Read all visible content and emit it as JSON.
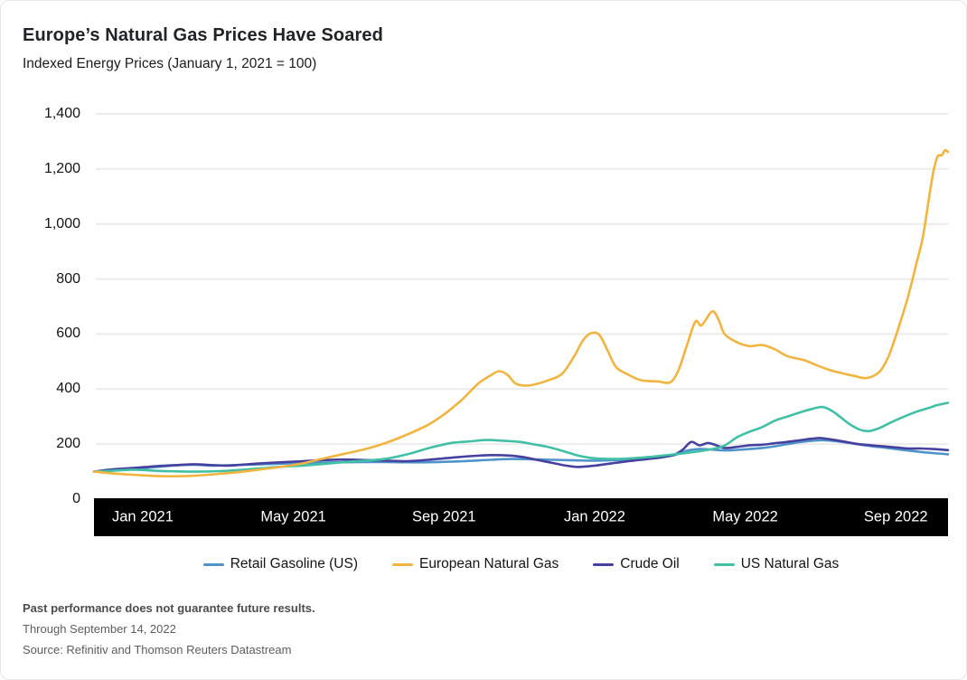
{
  "header": {
    "title": "Europe’s Natural Gas Prices Have Soared",
    "subtitle": "Indexed Energy Prices (January 1, 2021 = 100)"
  },
  "chart_data": {
    "type": "line",
    "title": "Europe’s Natural Gas Prices Have Soared",
    "subtitle": "Indexed Energy Prices (January 1, 2021 = 100)",
    "xlabel": "",
    "ylabel": "",
    "ylim": [
      0,
      1400
    ],
    "y_ticks": [
      "0",
      "200",
      "400",
      "600",
      "800",
      "1,000",
      "1,200",
      "1,400"
    ],
    "y_tick_values": [
      0,
      200,
      400,
      600,
      800,
      1000,
      1200,
      1400
    ],
    "x_tick_labels": [
      "Jan 2021",
      "May 2021",
      "Sep 2021",
      "Jan 2022",
      "May 2022",
      "Sep 2022"
    ],
    "x_range_months": 20.45,
    "grid": true,
    "legend_position": "bottom",
    "axis_band_color": "#000000",
    "grid_color": "#ececec",
    "series": [
      {
        "name": "Retail Gasoline (US)",
        "color": "#4E93CB",
        "points": [
          [
            0,
            100
          ],
          [
            0.3,
            103
          ],
          [
            0.6,
            106
          ],
          [
            1,
            110
          ],
          [
            1.5,
            117
          ],
          [
            2,
            123
          ],
          [
            2.4,
            125
          ],
          [
            2.8,
            122
          ],
          [
            3.2,
            123
          ],
          [
            3.6,
            125
          ],
          [
            4,
            127
          ],
          [
            4.5,
            129
          ],
          [
            5,
            131
          ],
          [
            5.5,
            133
          ],
          [
            6,
            134
          ],
          [
            6.5,
            135
          ],
          [
            7,
            135
          ],
          [
            7.5,
            134
          ],
          [
            8,
            134
          ],
          [
            8.5,
            136
          ],
          [
            9,
            139
          ],
          [
            9.5,
            143
          ],
          [
            10,
            146
          ],
          [
            10.5,
            145
          ],
          [
            11,
            143
          ],
          [
            11.5,
            141
          ],
          [
            12,
            140
          ],
          [
            12.5,
            142
          ],
          [
            13,
            146
          ],
          [
            13.5,
            152
          ],
          [
            13.9,
            160
          ],
          [
            14.2,
            176
          ],
          [
            14.5,
            182
          ],
          [
            14.8,
            180
          ],
          [
            15.1,
            177
          ],
          [
            15.4,
            179
          ],
          [
            15.7,
            182
          ],
          [
            16,
            186
          ],
          [
            16.3,
            192
          ],
          [
            16.6,
            200
          ],
          [
            16.9,
            207
          ],
          [
            17.2,
            212
          ],
          [
            17.5,
            214
          ],
          [
            17.8,
            210
          ],
          [
            18.1,
            204
          ],
          [
            18.4,
            197
          ],
          [
            18.7,
            191
          ],
          [
            19,
            186
          ],
          [
            19.3,
            180
          ],
          [
            19.6,
            175
          ],
          [
            19.9,
            170
          ],
          [
            20.2,
            166
          ],
          [
            20.45,
            163
          ]
        ]
      },
      {
        "name": "Crude Oil",
        "color": "#46419E",
        "points": [
          [
            0,
            100
          ],
          [
            0.3,
            106
          ],
          [
            0.6,
            110
          ],
          [
            1,
            114
          ],
          [
            1.5,
            120
          ],
          [
            2,
            124
          ],
          [
            2.4,
            127
          ],
          [
            2.8,
            124
          ],
          [
            3.2,
            122
          ],
          [
            3.6,
            126
          ],
          [
            4,
            130
          ],
          [
            4.5,
            134
          ],
          [
            5,
            138
          ],
          [
            5.5,
            142
          ],
          [
            6,
            144
          ],
          [
            6.5,
            142
          ],
          [
            7,
            140
          ],
          [
            7.5,
            138
          ],
          [
            8,
            143
          ],
          [
            8.5,
            150
          ],
          [
            9,
            156
          ],
          [
            9.5,
            160
          ],
          [
            10,
            158
          ],
          [
            10.3,
            152
          ],
          [
            10.6,
            143
          ],
          [
            11,
            131
          ],
          [
            11.3,
            122
          ],
          [
            11.6,
            117
          ],
          [
            12,
            122
          ],
          [
            12.4,
            130
          ],
          [
            12.8,
            138
          ],
          [
            13.2,
            145
          ],
          [
            13.6,
            152
          ],
          [
            13.9,
            162
          ],
          [
            14.1,
            180
          ],
          [
            14.3,
            208
          ],
          [
            14.5,
            196
          ],
          [
            14.7,
            204
          ],
          [
            14.9,
            196
          ],
          [
            15.1,
            186
          ],
          [
            15.4,
            190
          ],
          [
            15.7,
            196
          ],
          [
            16,
            198
          ],
          [
            16.3,
            203
          ],
          [
            16.6,
            208
          ],
          [
            16.9,
            214
          ],
          [
            17.2,
            220
          ],
          [
            17.4,
            222
          ],
          [
            17.7,
            216
          ],
          [
            18,
            208
          ],
          [
            18.3,
            200
          ],
          [
            18.6,
            196
          ],
          [
            18.9,
            192
          ],
          [
            19.2,
            188
          ],
          [
            19.5,
            184
          ],
          [
            19.8,
            184
          ],
          [
            20.1,
            182
          ],
          [
            20.45,
            178
          ]
        ]
      },
      {
        "name": "US Natural Gas",
        "color": "#41C0A5",
        "points": [
          [
            0,
            100
          ],
          [
            0.5,
            104
          ],
          [
            1,
            107
          ],
          [
            1.5,
            103
          ],
          [
            2,
            101
          ],
          [
            2.5,
            100
          ],
          [
            3,
            102
          ],
          [
            3.5,
            106
          ],
          [
            4,
            112
          ],
          [
            4.5,
            118
          ],
          [
            5,
            122
          ],
          [
            5.5,
            128
          ],
          [
            6,
            135
          ],
          [
            6.5,
            140
          ],
          [
            7,
            147
          ],
          [
            7.5,
            163
          ],
          [
            8,
            185
          ],
          [
            8.3,
            196
          ],
          [
            8.6,
            205
          ],
          [
            9,
            210
          ],
          [
            9.4,
            215
          ],
          [
            9.8,
            212
          ],
          [
            10.2,
            208
          ],
          [
            10.5,
            200
          ],
          [
            10.8,
            192
          ],
          [
            11,
            185
          ],
          [
            11.3,
            172
          ],
          [
            11.6,
            158
          ],
          [
            11.9,
            150
          ],
          [
            12.2,
            147
          ],
          [
            12.5,
            146
          ],
          [
            12.8,
            148
          ],
          [
            13.2,
            152
          ],
          [
            13.6,
            158
          ],
          [
            14,
            165
          ],
          [
            14.4,
            172
          ],
          [
            14.8,
            182
          ],
          [
            15.1,
            195
          ],
          [
            15.4,
            225
          ],
          [
            15.7,
            245
          ],
          [
            16,
            262
          ],
          [
            16.3,
            285
          ],
          [
            16.6,
            300
          ],
          [
            16.9,
            315
          ],
          [
            17.2,
            328
          ],
          [
            17.45,
            335
          ],
          [
            17.7,
            318
          ],
          [
            17.9,
            295
          ],
          [
            18.1,
            272
          ],
          [
            18.35,
            252
          ],
          [
            18.55,
            247
          ],
          [
            18.8,
            258
          ],
          [
            19.1,
            280
          ],
          [
            19.4,
            300
          ],
          [
            19.7,
            318
          ],
          [
            20,
            332
          ],
          [
            20.2,
            342
          ],
          [
            20.45,
            350
          ]
        ]
      },
      {
        "name": "European Natural Gas",
        "color": "#F1B53F",
        "points": [
          [
            0,
            100
          ],
          [
            0.5,
            93
          ],
          [
            1,
            88
          ],
          [
            1.5,
            84
          ],
          [
            2,
            83
          ],
          [
            2.5,
            86
          ],
          [
            3,
            92
          ],
          [
            3.5,
            99
          ],
          [
            4,
            108
          ],
          [
            4.5,
            118
          ],
          [
            5,
            130
          ],
          [
            5.5,
            148
          ],
          [
            6,
            165
          ],
          [
            6.5,
            182
          ],
          [
            7,
            205
          ],
          [
            7.5,
            235
          ],
          [
            8,
            270
          ],
          [
            8.4,
            310
          ],
          [
            8.8,
            360
          ],
          [
            9.2,
            420
          ],
          [
            9.5,
            450
          ],
          [
            9.7,
            465
          ],
          [
            9.9,
            452
          ],
          [
            10.1,
            420
          ],
          [
            10.4,
            413
          ],
          [
            10.8,
            428
          ],
          [
            11.2,
            455
          ],
          [
            11.5,
            520
          ],
          [
            11.7,
            575
          ],
          [
            11.9,
            603
          ],
          [
            12.1,
            597
          ],
          [
            12.3,
            540
          ],
          [
            12.5,
            480
          ],
          [
            12.8,
            452
          ],
          [
            13.1,
            432
          ],
          [
            13.5,
            428
          ],
          [
            13.8,
            425
          ],
          [
            14,
            470
          ],
          [
            14.2,
            560
          ],
          [
            14.4,
            645
          ],
          [
            14.55,
            632
          ],
          [
            14.8,
            682
          ],
          [
            14.95,
            655
          ],
          [
            15.1,
            600
          ],
          [
            15.4,
            570
          ],
          [
            15.7,
            556
          ],
          [
            16,
            560
          ],
          [
            16.3,
            545
          ],
          [
            16.6,
            520
          ],
          [
            17,
            505
          ],
          [
            17.3,
            487
          ],
          [
            17.6,
            470
          ],
          [
            17.9,
            458
          ],
          [
            18.2,
            448
          ],
          [
            18.5,
            440
          ],
          [
            18.8,
            462
          ],
          [
            19,
            510
          ],
          [
            19.15,
            570
          ],
          [
            19.3,
            640
          ],
          [
            19.5,
            740
          ],
          [
            19.7,
            860
          ],
          [
            19.85,
            955
          ],
          [
            20,
            1100
          ],
          [
            20.1,
            1190
          ],
          [
            20.2,
            1245
          ],
          [
            20.3,
            1250
          ],
          [
            20.38,
            1268
          ],
          [
            20.45,
            1262
          ]
        ]
      }
    ],
    "legend_order": [
      "Retail Gasoline (US)",
      "European Natural Gas",
      "Crude Oil",
      "US Natural Gas"
    ]
  },
  "footer": {
    "disclaimer": "Past performance does not guarantee future results.",
    "through": "Through September 14, 2022",
    "source": "Source: Refinitiv and Thomson Reuters Datastream"
  }
}
